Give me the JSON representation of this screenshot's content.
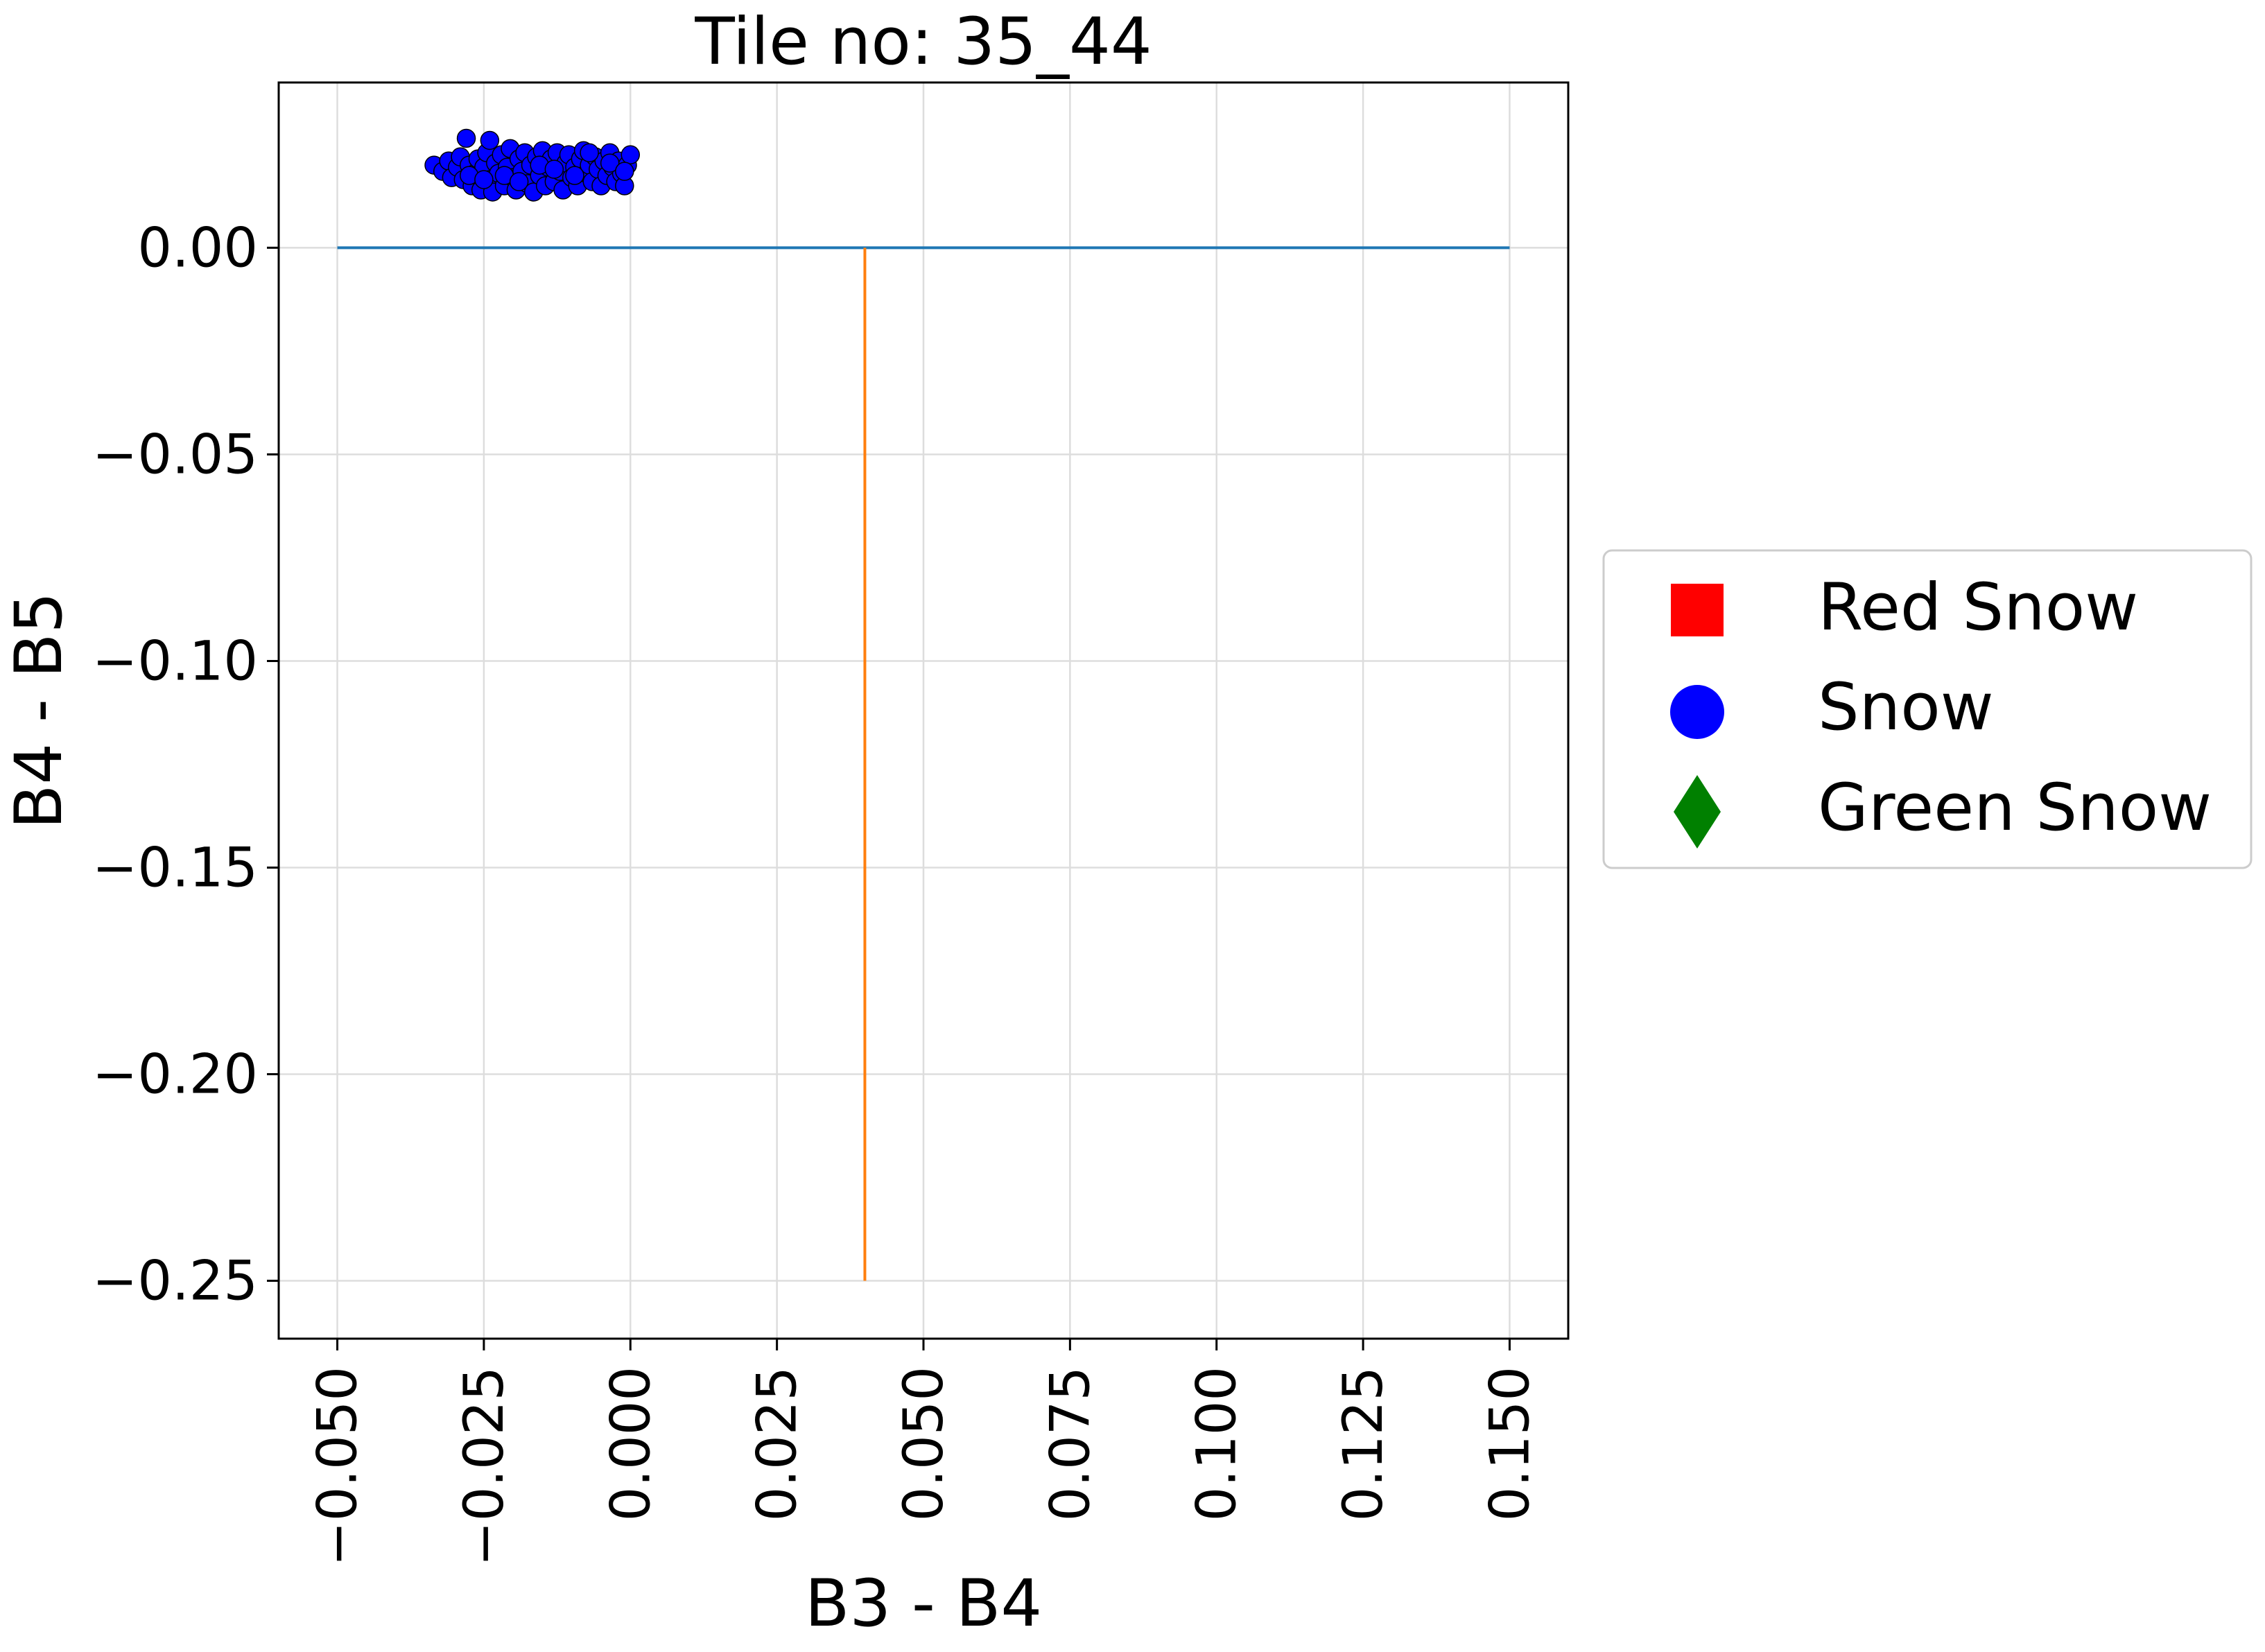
{
  "chart_data": {
    "type": "scatter",
    "title": "Tile no: 35_44",
    "xlabel": "B3 - B4",
    "ylabel": "B4 - B5",
    "xlim": [
      -0.06,
      0.16
    ],
    "ylim": [
      -0.264,
      0.04
    ],
    "xticks": [
      -0.05,
      -0.025,
      0.0,
      0.025,
      0.05,
      0.075,
      0.1,
      0.125,
      0.15
    ],
    "xtick_labels": [
      "−0.050",
      "−0.025",
      "0.000",
      "0.025",
      "0.050",
      "0.075",
      "0.100",
      "0.125",
      "0.150"
    ],
    "yticks": [
      0.0,
      -0.05,
      -0.1,
      -0.15,
      -0.2,
      -0.25
    ],
    "ytick_labels": [
      "0.00",
      "−0.05",
      "−0.10",
      "−0.15",
      "−0.20",
      "−0.25"
    ],
    "grid": true,
    "legend_position": "outside-right",
    "series": [
      {
        "name": "Red Snow",
        "marker": "square",
        "color": "#ff0000",
        "points": []
      },
      {
        "name": "Snow",
        "marker": "circle",
        "color": "#0000ff",
        "points": [
          [
            -0.0335,
            0.02
          ],
          [
            -0.032,
            0.0185
          ],
          [
            -0.031,
            0.021
          ],
          [
            -0.0305,
            0.017
          ],
          [
            -0.0295,
            0.0195
          ],
          [
            -0.029,
            0.022
          ],
          [
            -0.0285,
            0.0165
          ],
          [
            -0.028,
            0.0265
          ],
          [
            -0.0275,
            0.02
          ],
          [
            -0.027,
            0.015
          ],
          [
            -0.0265,
            0.018
          ],
          [
            -0.026,
            0.0215
          ],
          [
            -0.0255,
            0.014
          ],
          [
            -0.025,
            0.0195
          ],
          [
            -0.0245,
            0.023
          ],
          [
            -0.024,
            0.026
          ],
          [
            -0.024,
            0.0165
          ],
          [
            -0.0235,
            0.0135
          ],
          [
            -0.023,
            0.0205
          ],
          [
            -0.0225,
            0.018
          ],
          [
            -0.022,
            0.0225
          ],
          [
            -0.0215,
            0.015
          ],
          [
            -0.021,
            0.0195
          ],
          [
            -0.0205,
            0.024
          ],
          [
            -0.02,
            0.017
          ],
          [
            -0.0195,
            0.014
          ],
          [
            -0.019,
            0.0215
          ],
          [
            -0.0185,
            0.0185
          ],
          [
            -0.018,
            0.023
          ],
          [
            -0.0175,
            0.0155
          ],
          [
            -0.017,
            0.02
          ],
          [
            -0.0165,
            0.0135
          ],
          [
            -0.016,
            0.022
          ],
          [
            -0.0155,
            0.0175
          ],
          [
            -0.015,
            0.0235
          ],
          [
            -0.0145,
            0.015
          ],
          [
            -0.014,
            0.0195
          ],
          [
            -0.0135,
            0.0215
          ],
          [
            -0.013,
            0.016
          ],
          [
            -0.0125,
            0.023
          ],
          [
            -0.012,
            0.0185
          ],
          [
            -0.0115,
            0.014
          ],
          [
            -0.011,
            0.0205
          ],
          [
            -0.0105,
            0.0225
          ],
          [
            -0.01,
            0.017
          ],
          [
            -0.0095,
            0.0195
          ],
          [
            -0.009,
            0.015
          ],
          [
            -0.0085,
            0.0215
          ],
          [
            -0.008,
            0.0235
          ],
          [
            -0.0075,
            0.018
          ],
          [
            -0.007,
            0.02
          ],
          [
            -0.0065,
            0.016
          ],
          [
            -0.006,
            0.022
          ],
          [
            -0.0055,
            0.019
          ],
          [
            -0.005,
            0.015
          ],
          [
            -0.0045,
            0.021
          ],
          [
            -0.004,
            0.0175
          ],
          [
            -0.0035,
            0.023
          ],
          [
            -0.003,
            0.0195
          ],
          [
            -0.0025,
            0.016
          ],
          [
            -0.002,
            0.021
          ],
          [
            -0.0015,
            0.018
          ],
          [
            -0.001,
            0.015
          ],
          [
            -0.0005,
            0.02
          ],
          [
            0.0,
            0.0225
          ],
          [
            -0.0275,
            0.0175
          ],
          [
            -0.0215,
            0.0175
          ],
          [
            -0.0155,
            0.02
          ],
          [
            -0.0095,
            0.0175
          ],
          [
            -0.0035,
            0.0205
          ],
          [
            -0.025,
            0.0165
          ],
          [
            -0.019,
            0.016
          ],
          [
            -0.013,
            0.019
          ],
          [
            -0.007,
            0.023
          ],
          [
            -0.001,
            0.0185
          ]
        ]
      },
      {
        "name": "Green Snow",
        "marker": "diamond",
        "color": "#008000",
        "points": []
      }
    ],
    "lines": [
      {
        "color": "#1f77b4",
        "points": [
          [
            -0.05,
            0.0
          ],
          [
            0.15,
            0.0
          ]
        ]
      },
      {
        "color": "#ff7f0e",
        "points": [
          [
            0.04,
            0.0
          ],
          [
            0.04,
            -0.25
          ]
        ]
      }
    ]
  }
}
